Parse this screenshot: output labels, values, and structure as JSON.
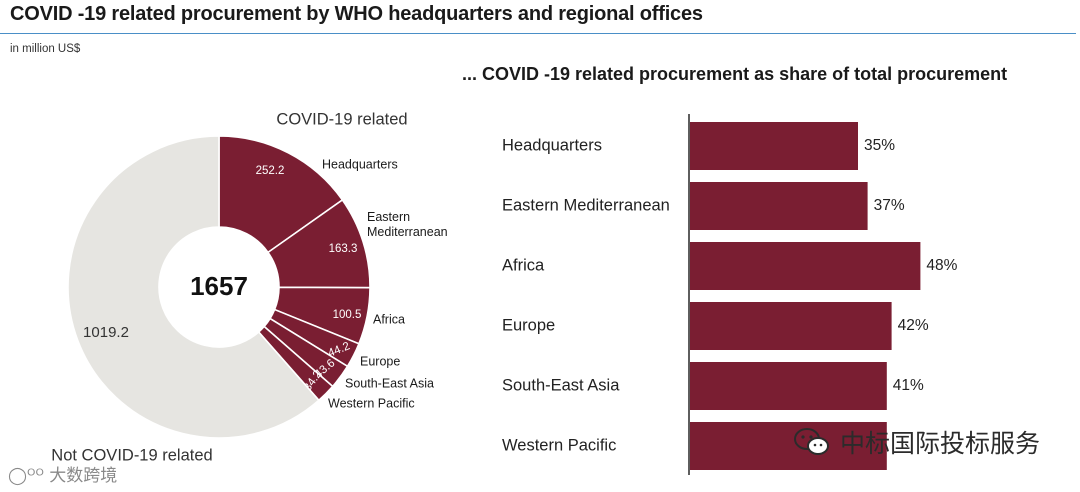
{
  "header": {
    "title": "COVID -19 related procurement by WHO headquarters and regional offices",
    "unit": "in million US$",
    "subtitle": "... COVID -19 related procurement as share of total procurement"
  },
  "colors": {
    "accent": "#7a1e32",
    "grey": "#e6e5e1",
    "rule": "#4a8fc7"
  },
  "watermarks": {
    "right": "中标国际投标服务",
    "left": "大数跨境"
  },
  "chart_data": [
    {
      "type": "pie",
      "variant": "donut",
      "center_label": "1657",
      "covid_label": "COVID-19 related",
      "not_covid_label": "Not COVID-19 related",
      "slices": [
        {
          "label": "Headquarters",
          "value": 252.2,
          "value_label": "252.2",
          "group": "covid"
        },
        {
          "label": "Eastern Mediterranean",
          "value": 163.3,
          "value_label": "163.3",
          "group": "covid"
        },
        {
          "label": "Africa",
          "value": 100.5,
          "value_label": "100.5",
          "group": "covid"
        },
        {
          "label": "Europe",
          "value": 44.2,
          "value_label": "44.2",
          "group": "covid"
        },
        {
          "label": "South-East Asia",
          "value": 43.6,
          "value_label": "43.6",
          "group": "covid"
        },
        {
          "label": "Western Pacific",
          "value": 34.2,
          "value_label": "34.2",
          "group": "covid"
        },
        {
          "label": "",
          "value": 1019.2,
          "value_label": "1019.2",
          "group": "not_covid"
        }
      ]
    },
    {
      "type": "bar",
      "orientation": "horizontal",
      "categories": [
        "Headquarters",
        "Eastern Mediterranean",
        "Africa",
        "Europe",
        "South-East Asia",
        "Western Pacific"
      ],
      "values": [
        35,
        37,
        48,
        42,
        41,
        41
      ],
      "value_labels": [
        "35%",
        "37%",
        "48%",
        "42%",
        "41%",
        ""
      ],
      "xlim": [
        0,
        100
      ]
    }
  ]
}
